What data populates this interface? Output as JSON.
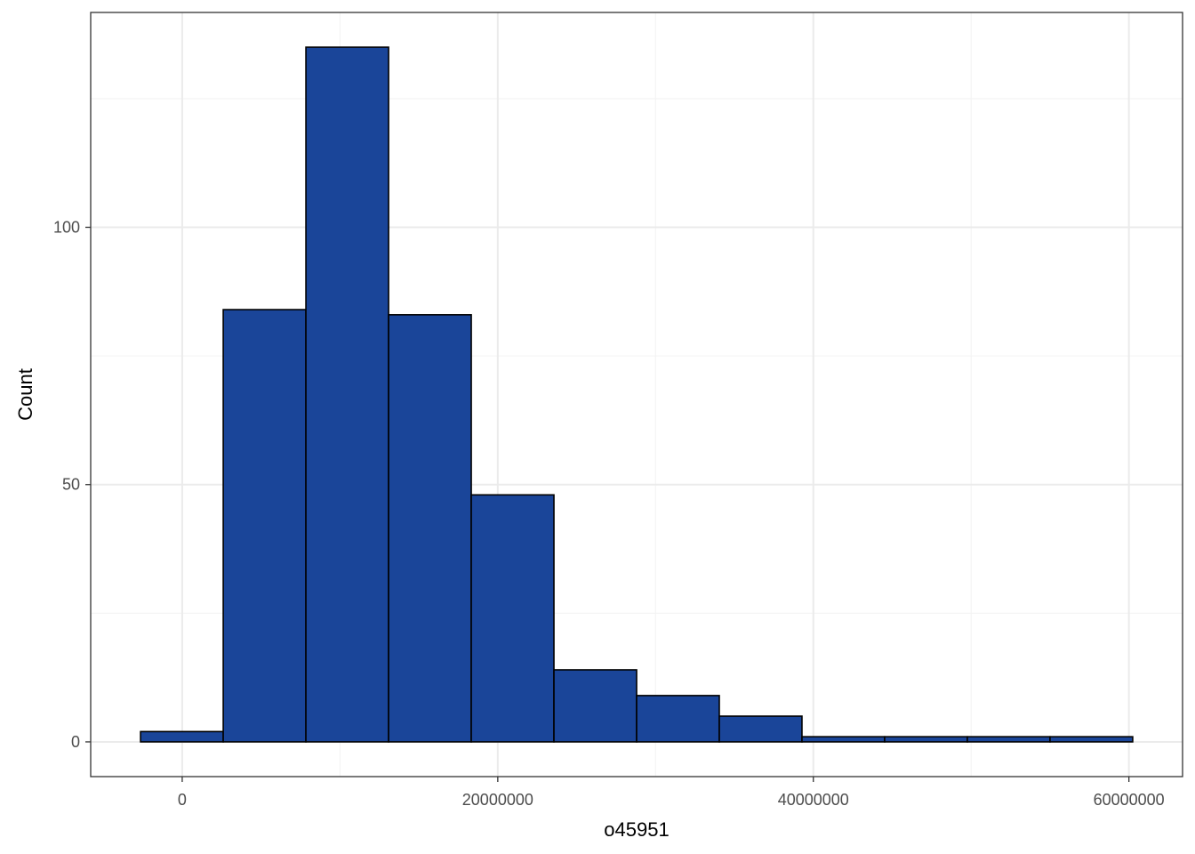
{
  "chart_data": {
    "type": "bar",
    "subtype": "histogram",
    "title": "",
    "xlabel": "o45951",
    "ylabel": "Count",
    "bins": [
      {
        "x0": -2640000,
        "x1": 2600000,
        "count": 2
      },
      {
        "x0": 2600000,
        "x1": 7840000,
        "count": 84
      },
      {
        "x0": 7840000,
        "x1": 13080000,
        "count": 135
      },
      {
        "x0": 13080000,
        "x1": 18320000,
        "count": 83
      },
      {
        "x0": 18320000,
        "x1": 23560000,
        "count": 48
      },
      {
        "x0": 23560000,
        "x1": 28800000,
        "count": 14
      },
      {
        "x0": 28800000,
        "x1": 34040000,
        "count": 9
      },
      {
        "x0": 34040000,
        "x1": 39280000,
        "count": 5
      },
      {
        "x0": 39280000,
        "x1": 44520000,
        "count": 1
      },
      {
        "x0": 44520000,
        "x1": 49760000,
        "count": 1
      },
      {
        "x0": 49760000,
        "x1": 55000000,
        "count": 1
      },
      {
        "x0": 55000000,
        "x1": 60240000,
        "count": 1
      }
    ],
    "xlim": [
      -5800000,
      63400000
    ],
    "ylim": [
      -6.75,
      141.75
    ],
    "x_ticks": [
      {
        "value": 0,
        "label": "0"
      },
      {
        "value": 20000000,
        "label": "20000000"
      },
      {
        "value": 40000000,
        "label": "40000000"
      },
      {
        "value": 60000000,
        "label": "60000000"
      }
    ],
    "y_ticks": [
      {
        "value": 0,
        "label": "0"
      },
      {
        "value": 50,
        "label": "50"
      },
      {
        "value": 100,
        "label": "100"
      }
    ],
    "x_minor": [
      10000000,
      30000000,
      50000000
    ],
    "y_minor": [
      25,
      75,
      125
    ],
    "grid": true,
    "legend": "none",
    "colors": {
      "bar_fill": "#1A4599",
      "bar_stroke": "#000000",
      "grid_major": "#EBEBEB",
      "grid_minor": "#F3F3F3",
      "panel_border": "#333333",
      "tick_text": "#4D4D4D"
    }
  }
}
